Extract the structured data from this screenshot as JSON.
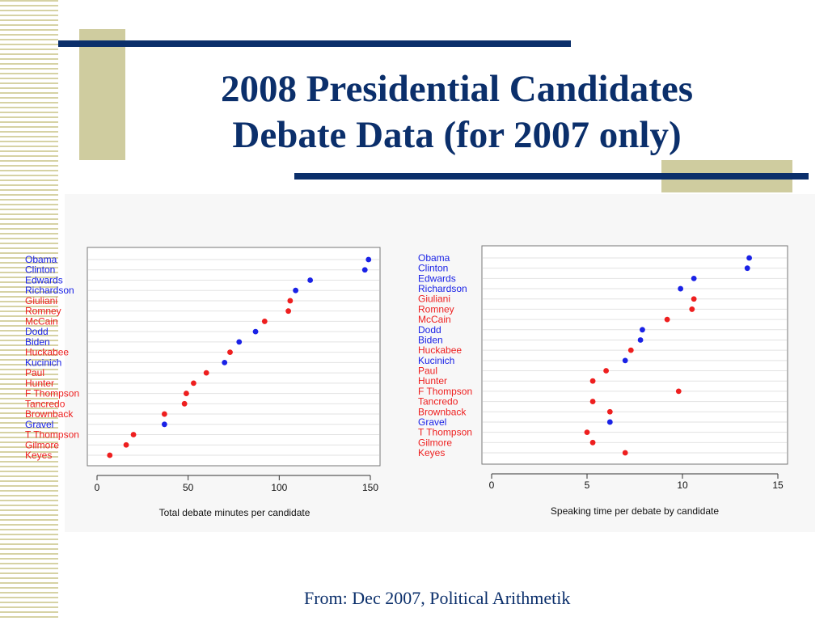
{
  "slide": {
    "title_line1": "2008 Presidential Candidates",
    "title_line2": "Debate Data (for 2007 only)",
    "footer": "From:  Dec 2007, Political Arithmetik"
  },
  "colors": {
    "democrat": "#1a22e6",
    "republican": "#ee1f1f",
    "title": "#0b2f6b",
    "accent": "#cfcc9f"
  },
  "chart_data": [
    {
      "type": "scatter",
      "xlabel": "Total debate minutes per candidate",
      "xlim": [
        0,
        150
      ],
      "xticks": [
        0,
        50,
        100,
        150
      ],
      "grid": true,
      "categories": [
        "Obama",
        "Clinton",
        "Edwards",
        "Richardson",
        "Giuliani",
        "Romney",
        "McCain",
        "Dodd",
        "Biden",
        "Huckabee",
        "Kucinich",
        "Paul",
        "Hunter",
        "F Thompson",
        "Tancredo",
        "Brownback",
        "Gravel",
        "T Thompson",
        "Gilmore",
        "Keyes"
      ],
      "party": [
        "D",
        "D",
        "D",
        "D",
        "R",
        "R",
        "R",
        "D",
        "D",
        "R",
        "D",
        "R",
        "R",
        "R",
        "R",
        "R",
        "D",
        "R",
        "R",
        "R"
      ],
      "values": [
        149,
        147,
        117,
        109,
        106,
        105,
        92,
        87,
        78,
        73,
        70,
        60,
        53,
        49,
        48,
        37,
        37,
        20,
        16,
        7
      ]
    },
    {
      "type": "scatter",
      "xlabel": "Speaking time per debate by candidate",
      "xlim": [
        0,
        15
      ],
      "xticks": [
        0,
        5,
        10,
        15
      ],
      "grid": true,
      "categories": [
        "Obama",
        "Clinton",
        "Edwards",
        "Richardson",
        "Giuliani",
        "Romney",
        "McCain",
        "Dodd",
        "Biden",
        "Huckabee",
        "Kucinich",
        "Paul",
        "Hunter",
        "F Thompson",
        "Tancredo",
        "Brownback",
        "Gravel",
        "T Thompson",
        "Gilmore",
        "Keyes"
      ],
      "party": [
        "D",
        "D",
        "D",
        "D",
        "R",
        "R",
        "R",
        "D",
        "D",
        "R",
        "D",
        "R",
        "R",
        "R",
        "R",
        "R",
        "D",
        "R",
        "R",
        "R"
      ],
      "values": [
        13.5,
        13.4,
        10.6,
        9.9,
        10.6,
        10.5,
        9.2,
        7.9,
        7.8,
        7.3,
        7.0,
        6.0,
        5.3,
        9.8,
        5.3,
        6.2,
        6.2,
        5.0,
        5.3,
        7.0
      ]
    }
  ]
}
